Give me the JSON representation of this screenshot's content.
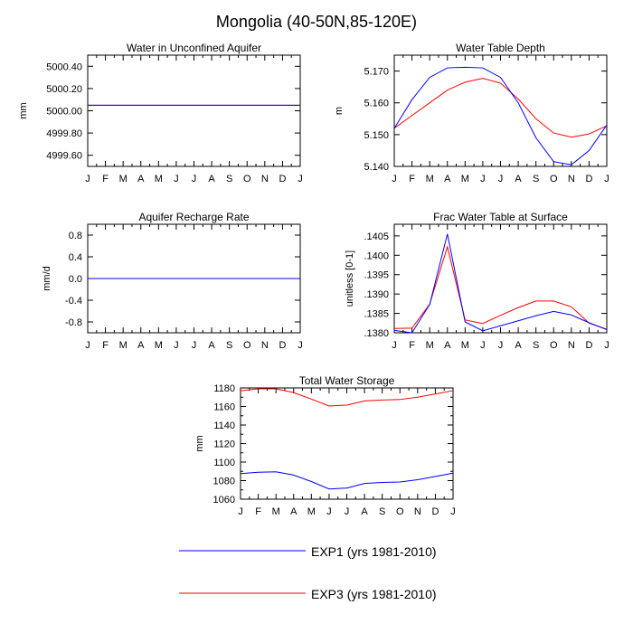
{
  "figure": {
    "title": "Mongolia (40-50N,85-120E)"
  },
  "colors": {
    "exp1": "#0000ff",
    "exp3": "#ff0000",
    "axis": "#000000"
  },
  "legend": {
    "items": [
      {
        "label": "EXP1 (yrs 1981-2010)",
        "color": "#0000ff"
      },
      {
        "label": "EXP3 (yrs 1981-2010)",
        "color": "#ff0000"
      }
    ]
  },
  "chart_data": [
    {
      "id": "p1",
      "type": "line",
      "title": "Water in Unconfined Aquifer",
      "ylabel": "mm",
      "xlabel": "",
      "categories": [
        "J",
        "F",
        "M",
        "A",
        "M",
        "J",
        "J",
        "A",
        "S",
        "O",
        "N",
        "D",
        "J"
      ],
      "ylim": [
        4999.5,
        5000.5
      ],
      "yticks": [
        4999.6,
        4999.8,
        5000.0,
        5000.2,
        5000.4
      ],
      "ytick_labels": [
        "4999.60",
        "4999.80",
        "5000.00",
        "5000.20",
        "5000.40"
      ],
      "grid": false,
      "series": [
        {
          "name": "EXP1 (yrs 1981-2010)",
          "color": "#0000ff",
          "values": [
            5000.05,
            5000.05,
            5000.05,
            5000.05,
            5000.05,
            5000.05,
            5000.05,
            5000.05,
            5000.05,
            5000.05,
            5000.05,
            5000.05,
            5000.05
          ]
        },
        {
          "name": "EXP3 (yrs 1981-2010)",
          "color": "#ff0000",
          "values": [
            5000.05,
            5000.05,
            5000.05,
            5000.05,
            5000.05,
            5000.05,
            5000.05,
            5000.05,
            5000.05,
            5000.05,
            5000.05,
            5000.05,
            5000.05
          ]
        }
      ]
    },
    {
      "id": "p2",
      "type": "line",
      "title": "Water Table Depth",
      "ylabel": "m",
      "xlabel": "",
      "categories": [
        "J",
        "F",
        "M",
        "A",
        "M",
        "J",
        "J",
        "A",
        "S",
        "O",
        "N",
        "D",
        "J"
      ],
      "ylim": [
        5.14,
        5.175
      ],
      "yticks": [
        5.14,
        5.15,
        5.16,
        5.17
      ],
      "ytick_labels": [
        "5.140",
        "5.150",
        "5.160",
        "5.170"
      ],
      "grid": false,
      "series": [
        {
          "name": "EXP1 (yrs 1981-2010)",
          "color": "#0000ff",
          "values": [
            5.152,
            5.161,
            5.168,
            5.171,
            5.1712,
            5.171,
            5.168,
            5.16,
            5.149,
            5.1415,
            5.1405,
            5.145,
            5.153
          ]
        },
        {
          "name": "EXP3 (yrs 1981-2010)",
          "color": "#ff0000",
          "values": [
            5.152,
            5.156,
            5.16,
            5.164,
            5.1665,
            5.1677,
            5.1662,
            5.1612,
            5.155,
            5.1505,
            5.1492,
            5.1502,
            5.1528
          ]
        }
      ]
    },
    {
      "id": "p3",
      "type": "line",
      "title": "Aquifer Recharge Rate",
      "ylabel": "mm/d",
      "xlabel": "",
      "categories": [
        "J",
        "F",
        "M",
        "A",
        "M",
        "J",
        "J",
        "A",
        "S",
        "O",
        "N",
        "D",
        "J"
      ],
      "ylim": [
        -1.0,
        1.0
      ],
      "yticks": [
        -0.8,
        -0.4,
        0.0,
        0.4,
        0.8
      ],
      "ytick_labels": [
        "-0.8",
        "-0.4",
        "0.0",
        "0.4",
        "0.8"
      ],
      "grid": false,
      "series": [
        {
          "name": "EXP1 (yrs 1981-2010)",
          "color": "#0000ff",
          "values": [
            0,
            0,
            0,
            0,
            0,
            0,
            0,
            0,
            0,
            0,
            0,
            0,
            0
          ]
        },
        {
          "name": "EXP3 (yrs 1981-2010)",
          "color": "#ff0000",
          "values": [
            0,
            0,
            0,
            0,
            0,
            0,
            0,
            0,
            0,
            0,
            0,
            0,
            0
          ]
        }
      ]
    },
    {
      "id": "p4",
      "type": "line",
      "title": "Frac Water Table at Surface",
      "ylabel": "unitless [0-1]",
      "xlabel": "",
      "categories": [
        "J",
        "F",
        "M",
        "A",
        "M",
        "J",
        "J",
        "A",
        "S",
        "O",
        "N",
        "D",
        "J"
      ],
      "ylim": [
        0.138,
        0.1408
      ],
      "yticks": [
        0.138,
        0.1385,
        0.139,
        0.1395,
        0.14,
        0.1405
      ],
      "ytick_labels": [
        ".1380",
        ".1385",
        ".1390",
        ".1395",
        ".1400",
        ".1405"
      ],
      "grid": false,
      "series": [
        {
          "name": "EXP1 (yrs 1981-2010)",
          "color": "#0000ff",
          "values": [
            0.13806,
            0.138,
            0.13873,
            0.14055,
            0.13828,
            0.13805,
            0.13818,
            0.13831,
            0.13844,
            0.13855,
            0.13846,
            0.13826,
            0.13808
          ]
        },
        {
          "name": "EXP3 (yrs 1981-2010)",
          "color": "#ff0000",
          "values": [
            0.13811,
            0.13812,
            0.13874,
            0.14022,
            0.13833,
            0.13824,
            0.13845,
            0.13865,
            0.13882,
            0.13882,
            0.13867,
            0.13825,
            0.13809
          ]
        }
      ]
    },
    {
      "id": "p5",
      "type": "line",
      "title": "Total Water Storage",
      "ylabel": "mm",
      "xlabel": "",
      "categories": [
        "J",
        "F",
        "M",
        "A",
        "M",
        "J",
        "J",
        "A",
        "S",
        "O",
        "N",
        "D",
        "J"
      ],
      "ylim": [
        1060,
        1180
      ],
      "yticks": [
        1060,
        1070,
        1080,
        1090,
        1100,
        1110,
        1120,
        1130,
        1140,
        1150,
        1160,
        1170,
        1180
      ],
      "ytick_labels": [
        "1060",
        "",
        "1080",
        "",
        "1100",
        "",
        "1120",
        "",
        "1140",
        "",
        "1160",
        "",
        "1180"
      ],
      "grid": false,
      "series": [
        {
          "name": "EXP1 (yrs 1981-2010)",
          "color": "#0000ff",
          "values": [
            1087.5,
            1089,
            1089.5,
            1086,
            1079,
            1071,
            1072,
            1077,
            1078,
            1078.5,
            1081,
            1084.5,
            1088
          ]
        },
        {
          "name": "EXP3 (yrs 1981-2010)",
          "color": "#ff0000",
          "values": [
            1177,
            1179,
            1179,
            1175,
            1168,
            1160.5,
            1161.5,
            1166,
            1167,
            1167.5,
            1170,
            1173.5,
            1177
          ]
        }
      ]
    }
  ]
}
